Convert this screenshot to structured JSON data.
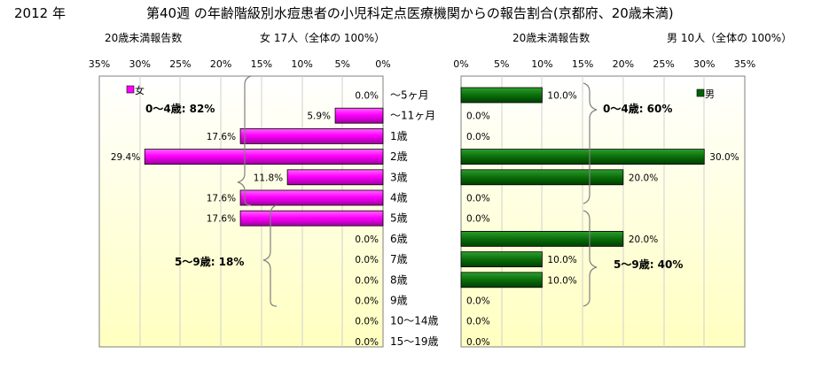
{
  "header": {
    "year": "2012 年",
    "title": "第40週 の年齢階級別水痘患者の小児科定点医療機関からの報告割合(京都府、20歳未満)"
  },
  "left_panel": {
    "subtitle": "20歳未満報告数",
    "count_text": "女 17人（全体の 100%）"
  },
  "right_panel": {
    "subtitle": "20歳未満報告数",
    "count_text": "男 10人（全体の 100%）"
  },
  "chart_data": [
    {
      "type": "bar",
      "orientation": "horizontal",
      "direction": "reversed",
      "series": [
        {
          "name": "女",
          "values": [
            0.0,
            5.9,
            17.6,
            29.4,
            11.8,
            17.6,
            17.6,
            0.0,
            0.0,
            0.0,
            0.0,
            0.0,
            0.0
          ]
        }
      ],
      "value_labels": [
        "0.0%",
        "5.9%",
        "17.6%",
        "29.4%",
        "11.8%",
        "17.6%",
        "17.6%",
        "0.0%",
        "0.0%",
        "0.0%",
        "0.0%",
        "0.0%",
        "0.0%"
      ],
      "xticks": [
        "35%",
        "30%",
        "25%",
        "20%",
        "15%",
        "10%",
        "5%",
        "0%"
      ],
      "xlim": [
        0,
        35
      ],
      "annotations": [
        "0～4歳: 82%",
        "5～9歳: 18%"
      ],
      "color": "#ff00ff",
      "legend_position": "top-left"
    },
    {
      "type": "bar",
      "orientation": "horizontal",
      "series": [
        {
          "name": "男",
          "values": [
            10.0,
            0.0,
            0.0,
            30.0,
            20.0,
            0.0,
            0.0,
            20.0,
            10.0,
            10.0,
            0.0,
            0.0,
            0.0
          ]
        }
      ],
      "value_labels": [
        "10.0%",
        "0.0%",
        "0.0%",
        "30.0%",
        "20.0%",
        "0.0%",
        "0.0%",
        "20.0%",
        "10.0%",
        "10.0%",
        "0.0%",
        "0.0%",
        "0.0%"
      ],
      "xticks": [
        "0%",
        "5%",
        "10%",
        "15%",
        "20%",
        "25%",
        "30%",
        "35%"
      ],
      "xlim": [
        0,
        35
      ],
      "annotations": [
        "0～4歳: 60%",
        "5～9歳: 40%"
      ],
      "color": "#006400",
      "legend_position": "top-right"
    }
  ],
  "categories": [
    "～5ヶ月",
    "～11ヶ月",
    "1歳",
    "2歳",
    "3歳",
    "4歳",
    "5歳",
    "6歳",
    "7歳",
    "8歳",
    "9歳",
    "10～14歳",
    "15～19歳"
  ]
}
